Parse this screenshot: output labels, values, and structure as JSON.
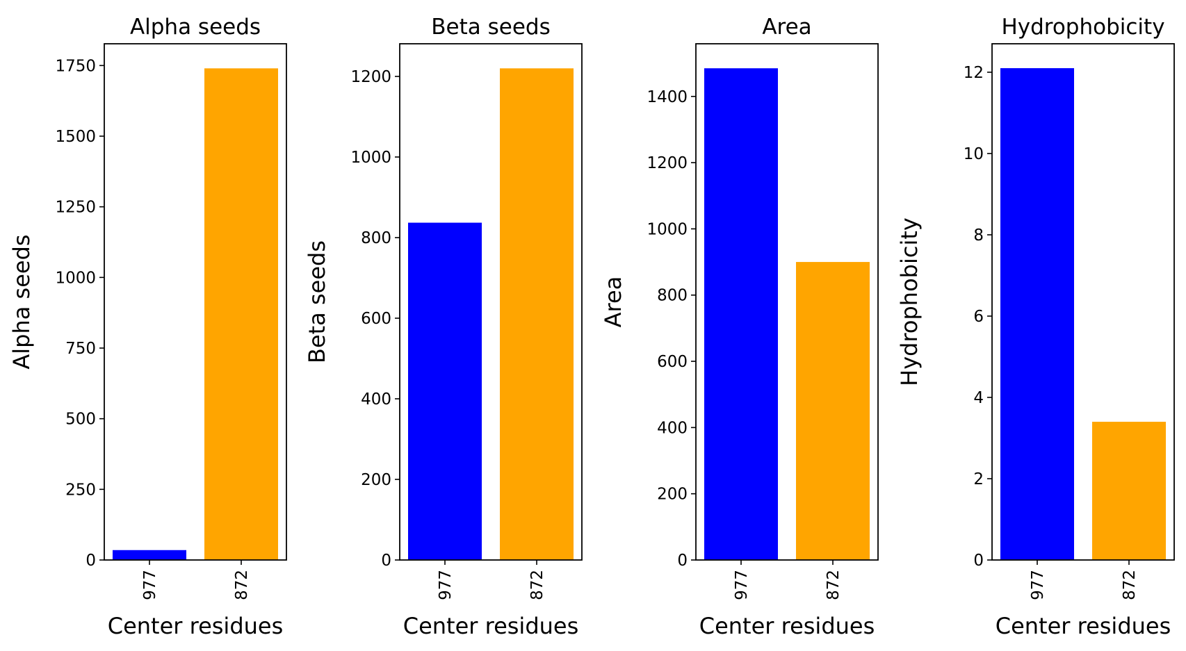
{
  "chart_data": [
    {
      "type": "bar",
      "title": "Alpha seeds",
      "xlabel": "Center residues",
      "ylabel": "Alpha seeds",
      "categories": [
        "977",
        "872"
      ],
      "values": [
        35,
        1740
      ],
      "colors": [
        "#0000ff",
        "#ffa500"
      ],
      "ylim": [
        0,
        1827
      ],
      "yticks": [
        0,
        250,
        500,
        750,
        1000,
        1250,
        1500,
        1750
      ],
      "grid": false
    },
    {
      "type": "bar",
      "title": "Beta seeds",
      "xlabel": "Center residues",
      "ylabel": "Beta seeds",
      "categories": [
        "977",
        "872"
      ],
      "values": [
        837,
        1220
      ],
      "colors": [
        "#0000ff",
        "#ffa500"
      ],
      "ylim": [
        0,
        1281
      ],
      "yticks": [
        0,
        200,
        400,
        600,
        800,
        1000,
        1200
      ],
      "grid": false
    },
    {
      "type": "bar",
      "title": "Area",
      "xlabel": "Center residues",
      "ylabel": "Area",
      "categories": [
        "977",
        "872"
      ],
      "values": [
        1485,
        900
      ],
      "colors": [
        "#0000ff",
        "#ffa500"
      ],
      "ylim": [
        0,
        1559
      ],
      "yticks": [
        0,
        200,
        400,
        600,
        800,
        1000,
        1200,
        1400
      ],
      "grid": false
    },
    {
      "type": "bar",
      "title": "Hydrophobicity",
      "xlabel": "Center residues",
      "ylabel": "Hydrophobicity",
      "categories": [
        "977",
        "872"
      ],
      "values": [
        12.1,
        3.4
      ],
      "colors": [
        "#0000ff",
        "#ffa500"
      ],
      "ylim": [
        0,
        12.7
      ],
      "yticks": [
        0,
        2,
        4,
        6,
        8,
        10,
        12
      ],
      "grid": false
    }
  ]
}
